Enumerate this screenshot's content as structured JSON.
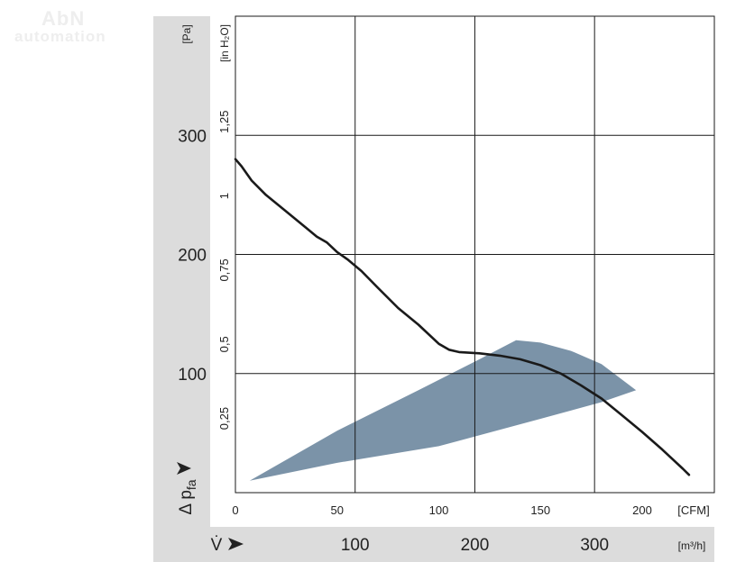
{
  "watermark": {
    "line1": "AbN",
    "line2": "automation"
  },
  "chart_data": {
    "type": "line",
    "axes": {
      "pa": {
        "label": "[Pa]",
        "ticks": [
          100,
          200,
          300
        ],
        "range": [
          0,
          400
        ]
      },
      "inh2o": {
        "label": "[in H₂O]",
        "ticks": [
          "0,25",
          "0,5",
          "0,75",
          "1",
          "1,25"
        ],
        "values": [
          0.25,
          0.5,
          0.75,
          1,
          1.25
        ]
      },
      "cfm": {
        "label": "[CFM]",
        "ticks": [
          0,
          50,
          100,
          150,
          200
        ],
        "range": [
          0,
          235
        ]
      },
      "m3h": {
        "label": "[m³/h]",
        "ticks": [
          100,
          200,
          300
        ],
        "range": [
          0,
          400
        ]
      }
    },
    "y_axis_title": "Δ p",
    "y_axis_subscript": "fa",
    "x_axis_title": "V̇",
    "gridlines": {
      "x_m3h": [
        100,
        200,
        300
      ],
      "y_pa": [
        100,
        200,
        300
      ]
    },
    "series": [
      {
        "x_cfm": [
          0,
          3,
          8,
          15,
          25,
          35,
          40,
          45,
          50,
          55,
          62,
          70,
          80,
          90,
          100,
          105,
          110,
          120,
          130,
          140,
          150,
          160,
          170,
          180,
          190,
          200,
          210,
          220,
          223
        ],
        "y_pa": [
          280,
          274,
          262,
          250,
          236,
          222,
          215,
          210,
          202,
          196,
          186,
          172,
          155,
          141,
          125,
          120,
          118,
          117,
          115,
          112,
          107,
          100,
          90,
          79,
          65,
          51,
          36,
          20,
          15
        ]
      }
    ],
    "operating_range": {
      "x_cfm": [
        7,
        50,
        90,
        120,
        138,
        150,
        165,
        180,
        197,
        180,
        150,
        100,
        50,
        7
      ],
      "y_pa": [
        10,
        52,
        86,
        112,
        128,
        126,
        119,
        108,
        86,
        76,
        62,
        39,
        25,
        10
      ],
      "color": "#7b93a8"
    },
    "colors": {
      "curve": "#1a1a1a",
      "grid": "#1a1a1a",
      "axis_band": "#dcdcdc"
    }
  }
}
